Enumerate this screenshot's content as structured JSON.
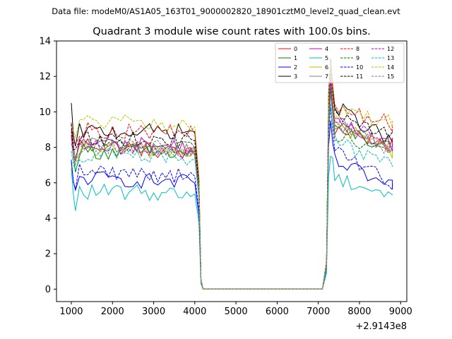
{
  "chart_data": {
    "type": "line",
    "suptitle": "Data file: modeM0/AS1A05_163T01_9000002820_18901cztM0_level2_quad_clean.evt",
    "title": "Quadrant 3 module wise count rates with 100.0s bins.",
    "xlabel": "",
    "ylabel": "",
    "x_offset_label": "+2.9143e8",
    "xlim": [
      640,
      9150
    ],
    "ylim": [
      -0.7,
      14
    ],
    "xticks": [
      1000,
      2000,
      3000,
      4000,
      5000,
      6000,
      7000,
      8000,
      9000
    ],
    "yticks": [
      0,
      2,
      4,
      6,
      8,
      10,
      12,
      14
    ],
    "xtick_labels": [
      "1000",
      "2000",
      "3000",
      "4000",
      "5000",
      "6000",
      "7000",
      "8000",
      "9000"
    ],
    "ytick_labels": [
      "0",
      "2",
      "4",
      "6",
      "8",
      "10",
      "12",
      "14"
    ],
    "legend_position": "top-right",
    "bin_seconds": 100,
    "series": [
      {
        "name": "0",
        "color": "#ff0000",
        "dashed": false,
        "start": 9.4,
        "level": 8.3,
        "level_end": 7.6,
        "post_peak": 11.0,
        "post_level": 9.1,
        "post_end": 8.1
      },
      {
        "name": "1",
        "color": "#008000",
        "dashed": false,
        "start": 8.6,
        "level": 7.8,
        "level_end": 7.6,
        "post_peak": 11.2,
        "post_level": 9.2,
        "post_end": 7.8
      },
      {
        "name": "2",
        "color": "#0000ff",
        "dashed": false,
        "start": 7.2,
        "level": 6.3,
        "level_end": 6.0,
        "post_peak": 9.5,
        "post_level": 7.2,
        "post_end": 5.7
      },
      {
        "name": "3",
        "color": "#000000",
        "dashed": false,
        "start": 10.5,
        "level": 8.9,
        "level_end": 8.9,
        "post_peak": 13.0,
        "post_level": 10.3,
        "post_end": 8.3
      },
      {
        "name": "4",
        "color": "#bf00bf",
        "dashed": false,
        "start": 9.0,
        "level": 8.3,
        "level_end": 8.0,
        "post_peak": 11.8,
        "post_level": 9.3,
        "post_end": 8.2
      },
      {
        "name": "5",
        "color": "#00bfbf",
        "dashed": false,
        "start": 6.8,
        "level": 5.5,
        "level_end": 5.4,
        "post_peak": 7.5,
        "post_level": 6.3,
        "post_end": 5.3
      },
      {
        "name": "6",
        "color": "#bfbf00",
        "dashed": false,
        "start": 8.5,
        "level": 7.9,
        "level_end": 7.8,
        "post_peak": 11.5,
        "post_level": 9.3,
        "post_end": 7.8
      },
      {
        "name": "7",
        "color": "#808080",
        "dashed": false,
        "start": 8.7,
        "level": 8.1,
        "level_end": 8.0,
        "post_peak": 11.5,
        "post_level": 9.3,
        "post_end": 8.0
      },
      {
        "name": "8",
        "color": "#ff0000",
        "dashed": true,
        "start": 9.3,
        "level": 9.0,
        "level_end": 8.8,
        "post_peak": 12.5,
        "post_level": 10.3,
        "post_end": 9.3
      },
      {
        "name": "9",
        "color": "#008000",
        "dashed": true,
        "start": 8.9,
        "level": 8.2,
        "level_end": 8.0,
        "post_peak": 11.3,
        "post_level": 8.8,
        "post_end": 7.8
      },
      {
        "name": "10",
        "color": "#0000ff",
        "dashed": true,
        "start": 7.3,
        "level": 6.7,
        "level_end": 6.4,
        "post_peak": 10.3,
        "post_level": 7.8,
        "post_end": 6.0
      },
      {
        "name": "11",
        "color": "#000000",
        "dashed": true,
        "start": 9.3,
        "level": 8.5,
        "level_end": 8.4,
        "post_peak": 12.2,
        "post_level": 9.7,
        "post_end": 8.8
      },
      {
        "name": "12",
        "color": "#bf00bf",
        "dashed": true,
        "start": 8.7,
        "level": 8.0,
        "level_end": 7.8,
        "post_peak": 12.0,
        "post_level": 9.5,
        "post_end": 8.2
      },
      {
        "name": "13",
        "color": "#00bfbf",
        "dashed": true,
        "start": 7.8,
        "level": 7.6,
        "level_end": 7.4,
        "post_peak": 10.5,
        "post_level": 8.4,
        "post_end": 6.9
      },
      {
        "name": "14",
        "color": "#bfbf00",
        "dashed": true,
        "start": 9.2,
        "level": 9.5,
        "level_end": 9.2,
        "post_peak": 12.8,
        "post_level": 10.0,
        "post_end": 9.5
      },
      {
        "name": "15",
        "color": "#808080",
        "dashed": true,
        "start": 8.2,
        "level": 8.1,
        "level_end": 7.9,
        "post_peak": 11.0,
        "post_level": 9.0,
        "post_end": 7.9
      }
    ],
    "time_profile": {
      "first_bin": 1000,
      "last_bin": 8800,
      "drop_start": 4000,
      "drop_bins": [
        [
          4000,
          1.0
        ],
        [
          4100,
          0.7
        ],
        [
          4150,
          0.06
        ],
        [
          4200,
          0.0
        ]
      ],
      "zero_until": 7100,
      "rise_bins": [
        [
          7100,
          0.0
        ],
        [
          7200,
          0.12
        ],
        [
          7250,
          0.85
        ],
        [
          7300,
          1.0
        ]
      ]
    }
  }
}
